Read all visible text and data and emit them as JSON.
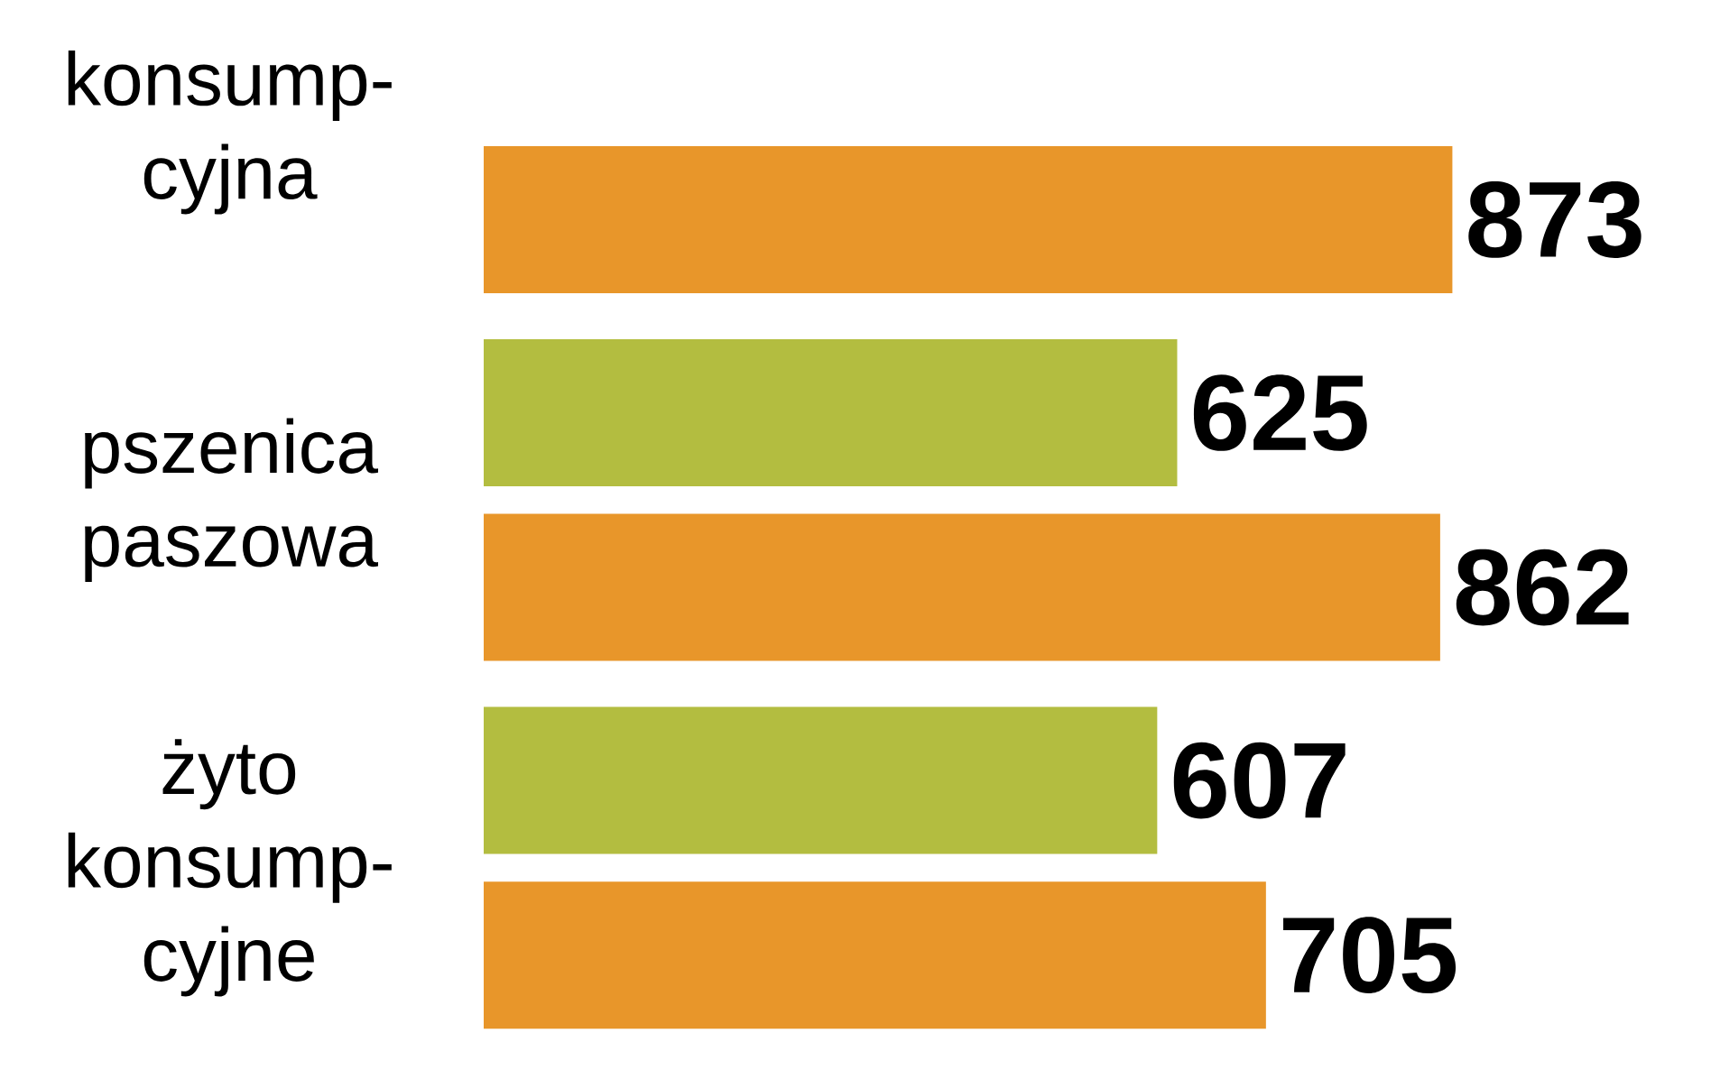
{
  "chart_data": {
    "type": "bar",
    "orientation": "horizontal",
    "categories": [
      "konsump- cyjna",
      "pszenica paszowa",
      "żyto konsump- cyjne"
    ],
    "series": [
      {
        "color": "#b3bd40",
        "values": [
          null,
          625,
          607
        ]
      },
      {
        "color": "#e8962a",
        "values": [
          873,
          862,
          705
        ]
      }
    ],
    "data_labels": true
  }
}
